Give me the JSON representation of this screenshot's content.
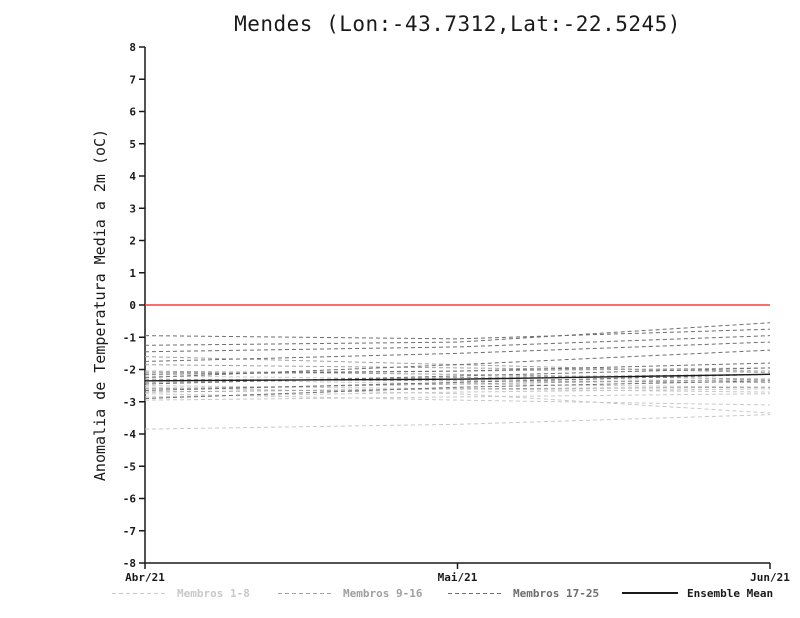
{
  "chart_data": {
    "type": "line",
    "title": "Mendes (Lon:-43.7312,Lat:-22.5245)",
    "ylabel": "Anomalia de Temperatura Media a 2m (oC)",
    "xlabel": "",
    "categories": [
      "Abr/21",
      "Mai/21",
      "Jun/21"
    ],
    "ylim": [
      -8,
      8
    ],
    "y_ticks": [
      8,
      7,
      6,
      5,
      4,
      3,
      2,
      1,
      0,
      -1,
      -2,
      -3,
      -4,
      -5,
      -6,
      -7,
      -8
    ],
    "grid": false,
    "legend_position": "bottom",
    "axis_color": "#1a1a1a",
    "zero_line": {
      "y": 0,
      "color": "#fa3c3c"
    },
    "series_groups": [
      {
        "name": "Membros 1-8",
        "color": "#c8c8c8",
        "line_style": "dashed",
        "members": [
          [
            -2.75,
            -2.95,
            -3.1
          ],
          [
            -2.55,
            -2.75,
            -3.35
          ],
          [
            -3.85,
            -3.7,
            -3.4
          ],
          [
            -2.3,
            -2.45,
            -2.55
          ],
          [
            -2.85,
            -2.7,
            -2.6
          ],
          [
            -2.2,
            -2.3,
            -2.35
          ],
          [
            -2.5,
            -2.6,
            -2.7
          ],
          [
            -2.95,
            -2.85,
            -2.75
          ]
        ]
      },
      {
        "name": "Membros 9-16",
        "color": "#a0a0a0",
        "line_style": "dashed",
        "members": [
          [
            -1.85,
            -1.95,
            -2.05
          ],
          [
            -2.1,
            -2.05,
            -1.95
          ],
          [
            -2.4,
            -2.25,
            -2.15
          ],
          [
            -2.6,
            -2.45,
            -2.3
          ],
          [
            -1.6,
            -1.85,
            -2.1
          ],
          [
            -2.05,
            -2.15,
            -2.3
          ],
          [
            -2.3,
            -2.35,
            -2.4
          ],
          [
            -2.7,
            -2.6,
            -2.55
          ]
        ]
      },
      {
        "name": "Membros 17-25",
        "color": "#6e6e6e",
        "line_style": "dashed",
        "members": [
          [
            -0.95,
            -1.05,
            -0.75
          ],
          [
            -1.25,
            -1.15,
            -0.55
          ],
          [
            -1.45,
            -1.3,
            -0.95
          ],
          [
            -1.75,
            -1.5,
            -1.15
          ],
          [
            -2.25,
            -1.85,
            -1.4
          ],
          [
            -2.45,
            -2.2,
            -1.95
          ],
          [
            -2.65,
            -2.4,
            -2.15
          ],
          [
            -2.9,
            -2.55,
            -2.35
          ],
          [
            -2.15,
            -2.05,
            -1.8
          ]
        ]
      }
    ],
    "ensemble_mean": {
      "name": "Ensemble Mean",
      "color": "#1a1a1a",
      "line_style": "solid",
      "values": [
        -2.35,
        -2.3,
        -2.15
      ]
    },
    "legend": [
      {
        "label": "Membros 1-8",
        "color": "#c8c8c8",
        "style": "dashed"
      },
      {
        "label": "Membros 9-16",
        "color": "#a0a0a0",
        "style": "dashed"
      },
      {
        "label": "Membros 17-25",
        "color": "#6e6e6e",
        "style": "dashed"
      },
      {
        "label": "Ensemble Mean",
        "color": "#1a1a1a",
        "style": "solid"
      }
    ]
  }
}
